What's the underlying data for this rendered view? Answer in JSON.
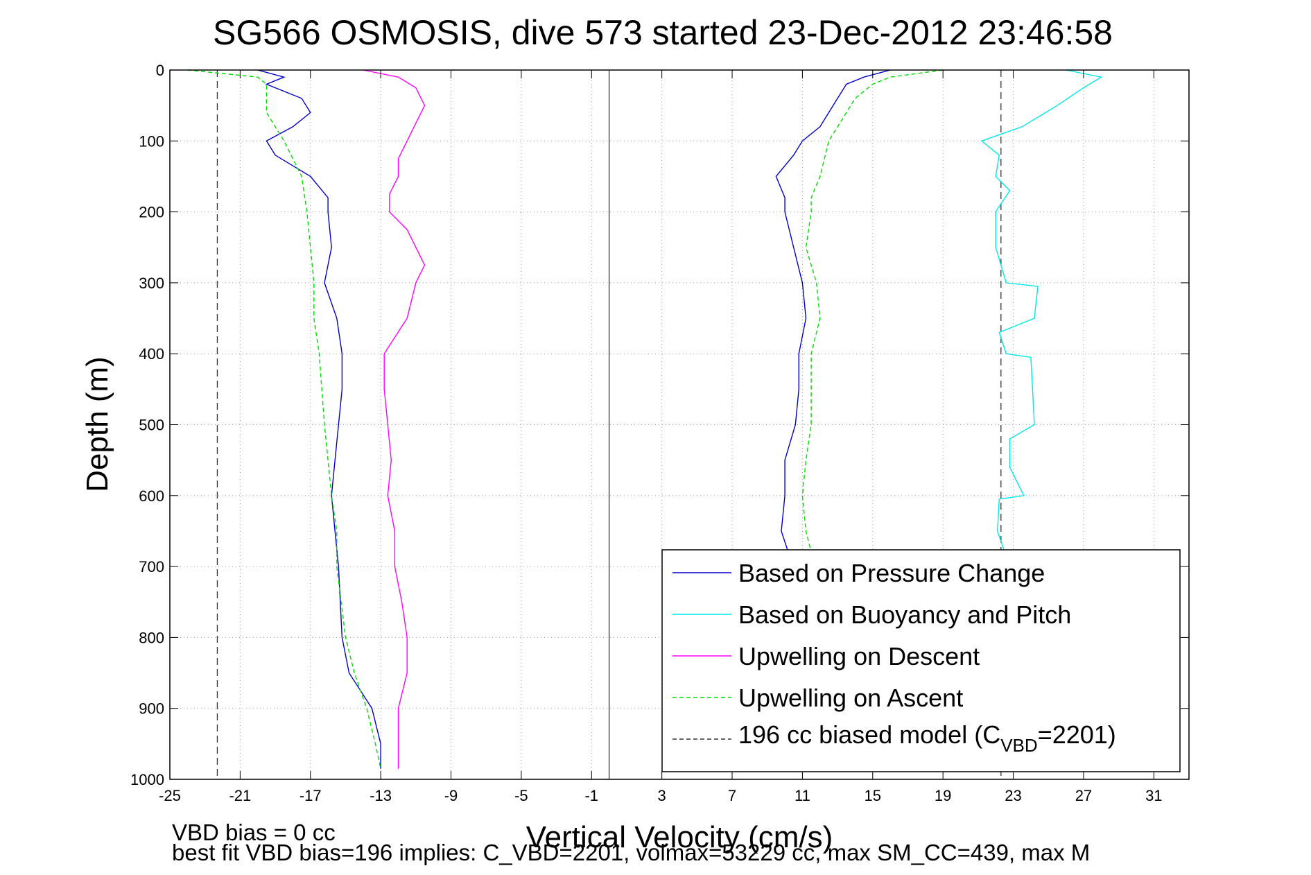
{
  "chart_data": {
    "type": "line",
    "title": "SG566 OSMOSIS, dive 573 started 23-Dec-2012 23:46:58",
    "xlabel": "Vertical Velocity (cm/s)",
    "ylabel": "Depth (m)",
    "xlim": [
      -25,
      33
    ],
    "ylim": [
      1000,
      0
    ],
    "y_reversed": true,
    "grid": true,
    "grid_style": "dotted",
    "xticks": [
      -25,
      -21,
      -17,
      -13,
      -9,
      -5,
      -1,
      3,
      7,
      11,
      15,
      19,
      23,
      27,
      31
    ],
    "yticks": [
      0,
      100,
      200,
      300,
      400,
      500,
      600,
      700,
      800,
      900,
      1000
    ],
    "xtick_labels": [
      "-25",
      "-21",
      "-17",
      "-13",
      "-9",
      "-5",
      "-1",
      "3",
      "7",
      "11",
      "15",
      "19",
      "23",
      "27",
      "31"
    ],
    "ytick_labels": [
      "0",
      "100",
      "200",
      "300",
      "400",
      "500",
      "600",
      "700",
      "800",
      "900",
      "1000"
    ],
    "vertical_lines": [
      {
        "x": -22.3,
        "style": "dashed",
        "color": "#333333"
      },
      {
        "x": 22.3,
        "style": "dashed",
        "color": "#333333"
      },
      {
        "x": 0,
        "style": "solid",
        "color": "#333333"
      }
    ],
    "legend_placement": "bottom-right",
    "legend": [
      {
        "label": "Based on Pressure Change",
        "color": "#0000c8",
        "style": "solid"
      },
      {
        "label": "Based on Buoyancy and Pitch",
        "color": "#00e8e8",
        "style": "solid"
      },
      {
        "label": "Upwelling on Descent",
        "color": "#ff00ff",
        "style": "solid"
      },
      {
        "label": "Upwelling on Ascent",
        "color": "#00dd00",
        "style": "dashed"
      },
      {
        "label_pre": "196 cc biased model (C",
        "label_sub": "VBD",
        "label_post": "=2201)",
        "color": "#333333",
        "style": "dashed"
      }
    ],
    "series": [
      {
        "color": "#00e8e8",
        "style": "solid",
        "depth": [
          0,
          10,
          25,
          50,
          80,
          100,
          120,
          150,
          170,
          200,
          250,
          300,
          305,
          350,
          370,
          400,
          405,
          450,
          500,
          520,
          560,
          600,
          605,
          650,
          700
        ],
        "values": [
          26,
          28,
          27,
          25.5,
          23.5,
          21.2,
          22.2,
          22.0,
          22.8,
          22.0,
          22.0,
          22.6,
          24.4,
          24.2,
          22.2,
          22.6,
          24.0,
          24.1,
          24.2,
          22.8,
          22.8,
          23.6,
          22.2,
          22.1,
          22.8
        ]
      },
      {
        "color": "#0000c8",
        "style": "solid",
        "depth": [
          0,
          10,
          20,
          40,
          60,
          80,
          100,
          120,
          150,
          180,
          200,
          250,
          300,
          350,
          400,
          450,
          500,
          550,
          600,
          650,
          700,
          750,
          800,
          850,
          900,
          950,
          985
        ],
        "values": [
          -20,
          -18.5,
          -19.5,
          -17.5,
          -17,
          -18,
          -19.5,
          -19,
          -17,
          -16,
          -16,
          -15.8,
          -16.2,
          -15.5,
          -15.2,
          -15.2,
          -15.4,
          -15.6,
          -15.8,
          -15.6,
          -15.4,
          -15.3,
          -15.2,
          -14.8,
          -13.5,
          -13,
          -13
        ]
      },
      {
        "color": "#0000c8",
        "style": "solid",
        "depth": [
          0,
          10,
          20,
          40,
          60,
          80,
          100,
          120,
          150,
          180,
          200,
          250,
          300,
          350,
          400,
          450,
          500,
          550,
          600,
          650,
          680
        ],
        "values": [
          16,
          14.5,
          13.5,
          13,
          12.5,
          12,
          11,
          10.5,
          9.5,
          10,
          10,
          10.5,
          11,
          11.2,
          10.8,
          10.8,
          10.6,
          10,
          10,
          9.8,
          10.2
        ]
      },
      {
        "color": "#ff00ff",
        "style": "solid",
        "depth": [
          0,
          10,
          25,
          50,
          75,
          100,
          125,
          150,
          175,
          200,
          225,
          250,
          275,
          300,
          350,
          400,
          450,
          500,
          550,
          600,
          650,
          700,
          750,
          800,
          850,
          900,
          950,
          985
        ],
        "values": [
          -14,
          -12,
          -11,
          -10.5,
          -11,
          -11.5,
          -12,
          -12,
          -12.5,
          -12.5,
          -11.5,
          -11,
          -10.5,
          -11,
          -11.5,
          -12.8,
          -12.8,
          -12.6,
          -12.4,
          -12.6,
          -12.2,
          -12.2,
          -11.8,
          -11.5,
          -11.5,
          -12,
          -12,
          -12
        ]
      },
      {
        "color": "#00dd00",
        "style": "dashed",
        "depth": [
          0,
          10,
          20,
          40,
          60,
          80,
          100,
          150,
          200,
          250,
          300,
          350,
          400,
          500,
          550,
          600,
          650,
          700,
          800,
          850,
          900,
          950,
          985
        ],
        "values": [
          -24,
          -20,
          -19.5,
          -19.5,
          -19.5,
          -19,
          -18.5,
          -17.5,
          -17.2,
          -17,
          -16.8,
          -16.8,
          -16.5,
          -16.2,
          -16,
          -15.8,
          -15.5,
          -15.5,
          -15,
          -14.5,
          -13.8,
          -13.3,
          -13
        ]
      },
      {
        "color": "#00dd00",
        "style": "dashed",
        "depth": [
          0,
          10,
          20,
          40,
          60,
          100,
          150,
          180,
          200,
          250,
          300,
          350,
          400,
          500,
          550,
          600,
          650,
          680
        ],
        "values": [
          19,
          16,
          15,
          14,
          13.5,
          12.5,
          12,
          11.5,
          11.5,
          11.2,
          11.8,
          12,
          11.5,
          11.5,
          11.2,
          11,
          11.2,
          11.5
        ]
      }
    ]
  },
  "footer": {
    "line1": "VBD bias = 0 cc",
    "line2": "best fit VBD bias=196 implies: C_VBD=2201, volmax=53229 cc, max SM_CC=439, max M"
  }
}
